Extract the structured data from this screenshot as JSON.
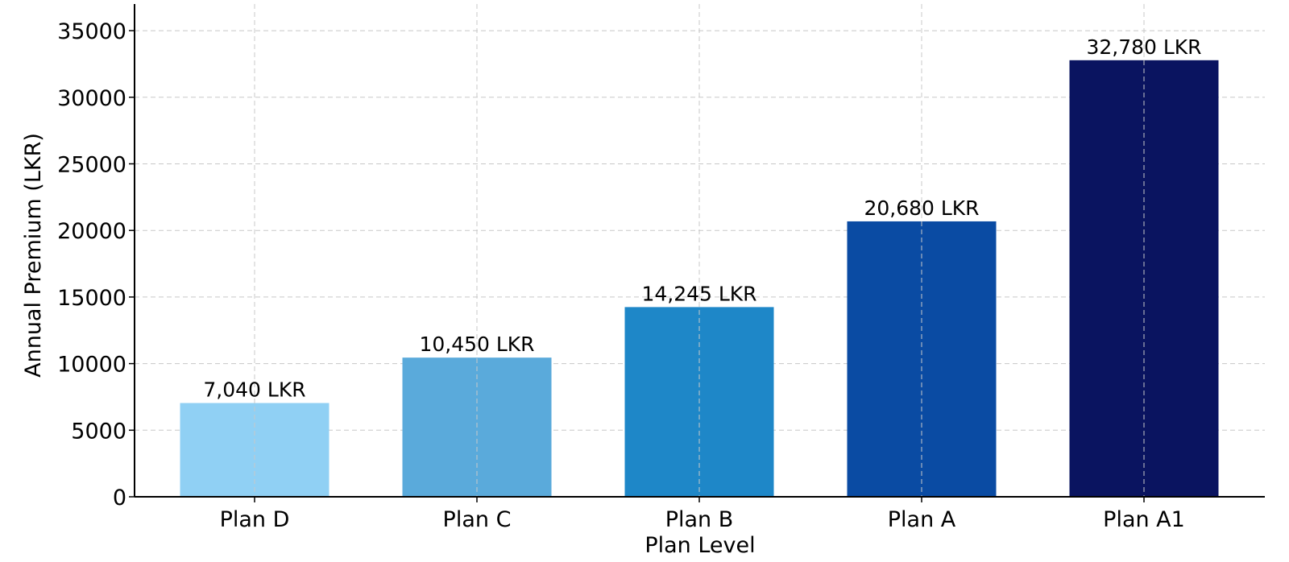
{
  "chart_data": {
    "type": "bar",
    "title": "",
    "xlabel": "Plan Level",
    "ylabel": "Annual Premium (LKR)",
    "categories": [
      "Plan D",
      "Plan C",
      "Plan B",
      "Plan A",
      "Plan A1"
    ],
    "values": [
      7040,
      10450,
      14245,
      20680,
      32780
    ],
    "data_labels": [
      "7,040 LKR",
      "10,450 LKR",
      "14,245 LKR",
      "20,680 LKR",
      "32,780 LKR"
    ],
    "bar_colors": [
      "#90d0f4",
      "#5aaadb",
      "#1e87c8",
      "#0a4ba3",
      "#0a1460"
    ],
    "ylim": [
      0,
      37000
    ],
    "yticks": [
      0,
      5000,
      10000,
      15000,
      20000,
      25000,
      30000,
      35000
    ],
    "grid": true,
    "legend": "none"
  }
}
